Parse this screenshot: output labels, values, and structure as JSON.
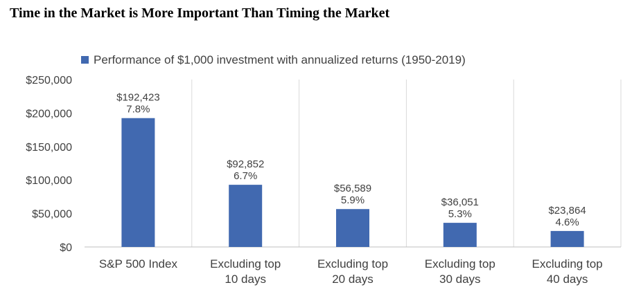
{
  "title": "Time in the Market is More Important Than Timing the Market",
  "chart_data": {
    "type": "bar",
    "categories": [
      [
        "S&P 500 Index"
      ],
      [
        "Excluding top",
        "10 days"
      ],
      [
        "Excluding top",
        "20 days"
      ],
      [
        "Excluding top",
        "30 days"
      ],
      [
        "Excluding top",
        "40 days"
      ]
    ],
    "series": [
      {
        "name": "Performance of $1,000 investment with annualized returns (1950-2019)",
        "values": [
          192423,
          92852,
          56589,
          36051,
          23864
        ],
        "value_labels": [
          "$192,423",
          "$92,852",
          "$56,589",
          "$36,051",
          "$23,864"
        ],
        "return_labels": [
          "7.8%",
          "6.7%",
          "5.9%",
          "5.3%",
          "4.6%"
        ],
        "color": "#4169B0"
      }
    ],
    "y_ticks": [
      "$0",
      "$50,000",
      "$100,000",
      "$150,000",
      "$200,000",
      "$250,000"
    ],
    "ylim": [
      0,
      250000
    ],
    "grid": "vertical separators between categories",
    "legend": "top"
  }
}
